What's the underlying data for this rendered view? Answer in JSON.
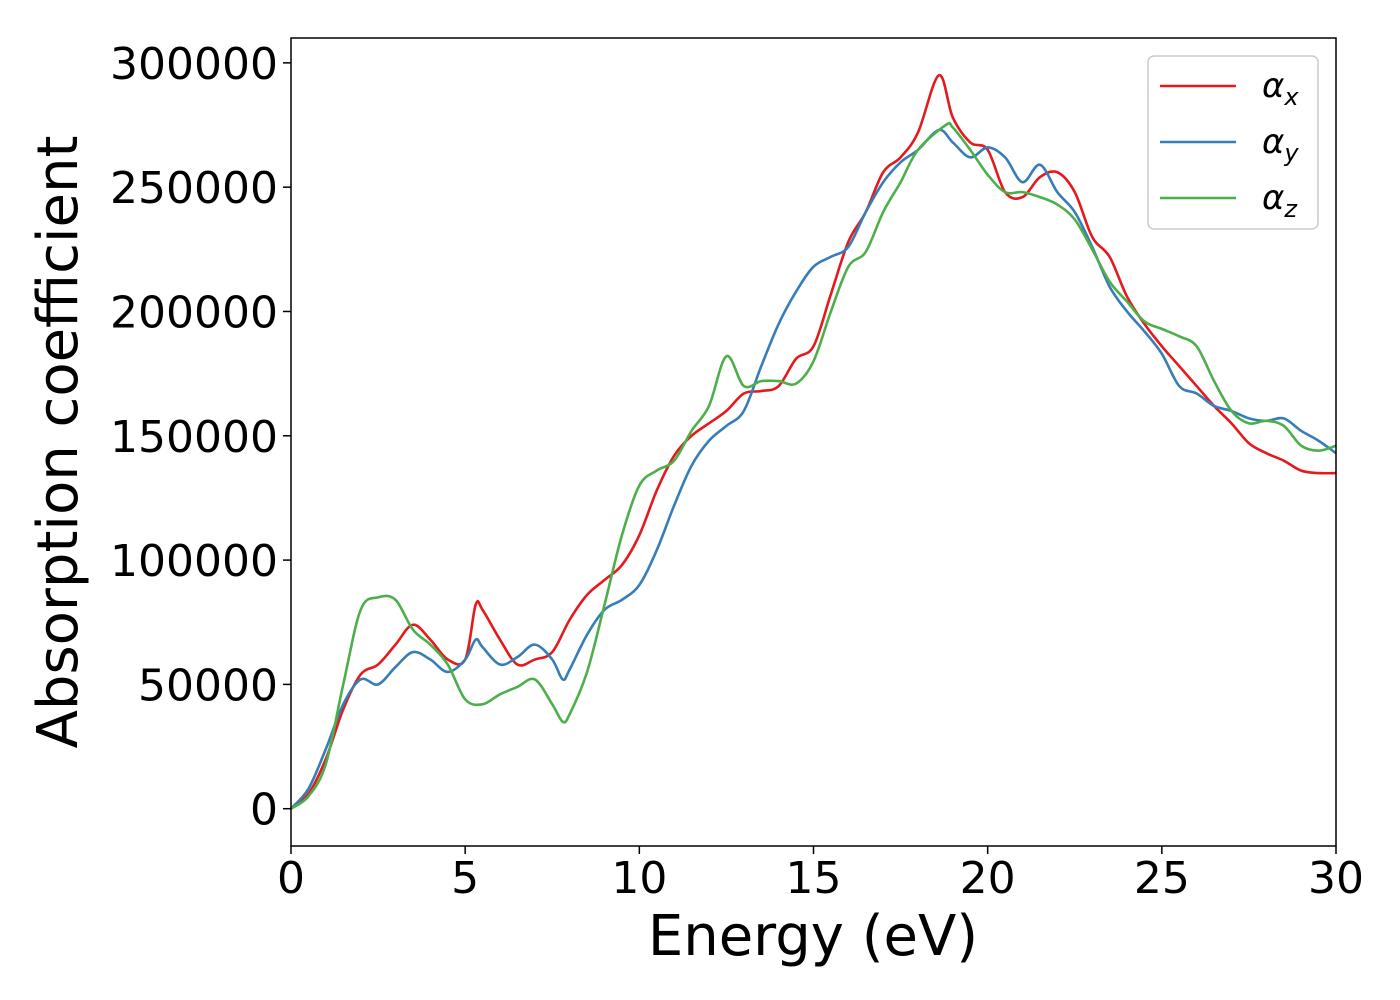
{
  "chart_data": {
    "type": "line",
    "title": "",
    "xlabel": "Energy (eV)",
    "ylabel": "Absorption coefficient",
    "xlim": [
      0,
      30
    ],
    "ylim": [
      -15000,
      310000
    ],
    "xticks": [
      0,
      5,
      10,
      15,
      20,
      25,
      30
    ],
    "yticks": [
      0,
      50000,
      100000,
      150000,
      200000,
      250000,
      300000
    ],
    "grid": false,
    "legend_position": "top-right",
    "series": [
      {
        "name": "α_x",
        "label_main": "α",
        "label_sub": "x",
        "color": "#e41a1c",
        "x": [
          0,
          0.5,
          1,
          1.5,
          2,
          2.5,
          3,
          3.5,
          4,
          4.5,
          5,
          5.3,
          5.5,
          6,
          6.5,
          7,
          7.5,
          8,
          8.5,
          9,
          9.5,
          10,
          10.5,
          11,
          11.5,
          12,
          12.5,
          13,
          13.5,
          14,
          14.5,
          15,
          15.5,
          16,
          16.5,
          17,
          17.5,
          18,
          18.6,
          19,
          19.5,
          20,
          20.5,
          21,
          21.5,
          22,
          22.5,
          23,
          23.5,
          24,
          24.5,
          25,
          25.5,
          26,
          26.5,
          27,
          27.5,
          28,
          28.5,
          29,
          29.5,
          30
        ],
        "values": [
          0,
          6000,
          20000,
          40000,
          54000,
          58000,
          66000,
          74000,
          68000,
          60000,
          60000,
          82000,
          80000,
          68000,
          58000,
          60000,
          63000,
          76000,
          86000,
          92000,
          98000,
          110000,
          128000,
          142000,
          150000,
          155000,
          160000,
          167000,
          168000,
          170000,
          181000,
          186000,
          207000,
          228000,
          240000,
          256000,
          262000,
          272000,
          295000,
          278000,
          268000,
          265000,
          248000,
          246000,
          254000,
          256000,
          248000,
          230000,
          222000,
          206000,
          195000,
          186000,
          178000,
          170000,
          162000,
          155000,
          147000,
          143000,
          140000,
          136000,
          135000,
          135000
        ]
      },
      {
        "name": "α_y",
        "label_main": "α",
        "label_sub": "y",
        "color": "#377eb8",
        "x": [
          0,
          0.5,
          1,
          1.5,
          2,
          2.5,
          3,
          3.5,
          4,
          4.5,
          5,
          5.3,
          5.5,
          6,
          6.5,
          7,
          7.5,
          7.8,
          8,
          8.5,
          9,
          9.5,
          10,
          10.5,
          11,
          11.5,
          12,
          12.5,
          13,
          13.5,
          14,
          14.5,
          15,
          15.5,
          16,
          16.5,
          17,
          17.5,
          18,
          18.6,
          19,
          19.5,
          20,
          20.5,
          21,
          21.5,
          22,
          22.5,
          23,
          23.5,
          24,
          24.5,
          25,
          25.5,
          26,
          26.5,
          27,
          27.5,
          28,
          28.5,
          29,
          29.5,
          30
        ],
        "values": [
          0,
          8000,
          24000,
          42000,
          52000,
          50000,
          57000,
          63000,
          60000,
          55000,
          60000,
          68000,
          65000,
          58000,
          61000,
          66000,
          60000,
          52000,
          56000,
          70000,
          80000,
          84000,
          90000,
          104000,
          122000,
          138000,
          148000,
          154000,
          160000,
          178000,
          195000,
          208000,
          218000,
          222000,
          226000,
          240000,
          252000,
          260000,
          265000,
          273000,
          268000,
          262000,
          266000,
          262000,
          252000,
          259000,
          248000,
          240000,
          226000,
          210000,
          200000,
          192000,
          183000,
          170000,
          167000,
          162000,
          160000,
          157000,
          156000,
          157000,
          152000,
          148000,
          143000
        ]
      },
      {
        "name": "α_z",
        "label_main": "α",
        "label_sub": "z",
        "color": "#4daf4a",
        "x": [
          0,
          0.5,
          1,
          1.5,
          2,
          2.5,
          3,
          3.5,
          4,
          4.5,
          5,
          5.5,
          6,
          6.5,
          7,
          7.5,
          7.8,
          8,
          8.5,
          9,
          9.5,
          10,
          10.5,
          11,
          11.5,
          12,
          12.5,
          13,
          13.5,
          14,
          14.5,
          15,
          15.5,
          16,
          16.5,
          17,
          17.5,
          18,
          18.8,
          19,
          19.5,
          20,
          20.5,
          21,
          21.5,
          22,
          22.5,
          23,
          23.5,
          24,
          24.5,
          25,
          25.5,
          26,
          26.5,
          27,
          27.5,
          28,
          28.5,
          29,
          29.5,
          30
        ],
        "values": [
          0,
          5000,
          18000,
          50000,
          80000,
          85000,
          84000,
          72000,
          66000,
          58000,
          44000,
          42000,
          46000,
          49000,
          52000,
          42000,
          35000,
          38000,
          55000,
          82000,
          110000,
          130000,
          136000,
          140000,
          152000,
          162000,
          182000,
          170000,
          172000,
          172000,
          171000,
          180000,
          200000,
          218000,
          224000,
          240000,
          252000,
          265000,
          275000,
          274000,
          265000,
          255000,
          248000,
          248000,
          246000,
          243000,
          237000,
          225000,
          212000,
          204000,
          196000,
          193000,
          190000,
          186000,
          172000,
          160000,
          155000,
          156000,
          154000,
          146000,
          144000,
          146000
        ]
      }
    ]
  }
}
